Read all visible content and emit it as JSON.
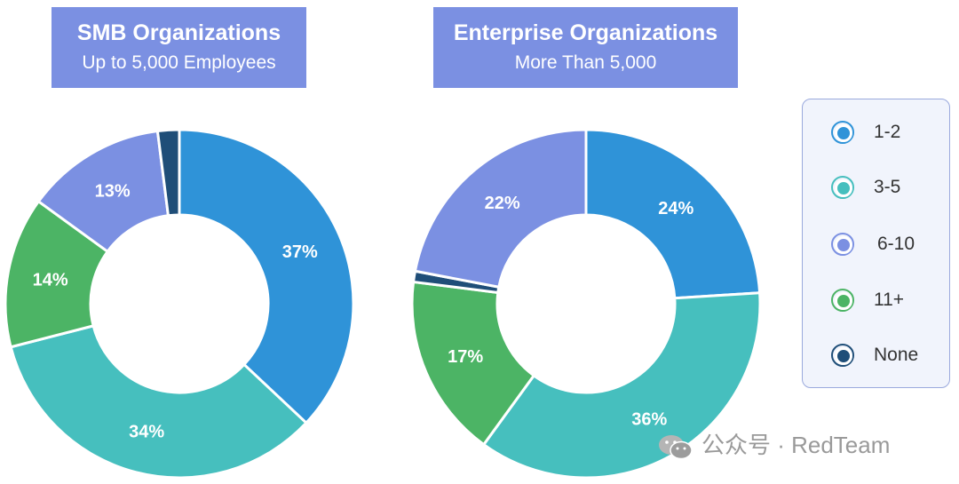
{
  "colors": {
    "1-2": "#2f93d8",
    "3-5": "#46bfbe",
    "6-10": "#7b90e2",
    "11+": "#4cb465",
    "None": "#1f4e78"
  },
  "chart_data": [
    {
      "type": "pie",
      "title": "SMB Organizations",
      "subtitle": "Up to 5,000 Employees",
      "categories": [
        "1-2",
        "3-5",
        "11+",
        "6-10",
        "None"
      ],
      "values": [
        37,
        34,
        14,
        13,
        2
      ],
      "labels": [
        "37%",
        "34%",
        "14%",
        "13%",
        ""
      ]
    },
    {
      "type": "pie",
      "title": "Enterprise Organizations",
      "subtitle": "More Than 5,000",
      "categories": [
        "1-2",
        "3-5",
        "11+",
        "None",
        "6-10"
      ],
      "values": [
        24,
        36,
        17,
        1,
        22
      ],
      "labels": [
        "24%",
        "36%",
        "17%",
        "",
        "22%"
      ]
    }
  ],
  "legend": [
    {
      "label": "1-2",
      "key": "1-2"
    },
    {
      "label": "3-5",
      "key": "3-5"
    },
    {
      "label": "6-10",
      "key": "6-10"
    },
    {
      "label": "11+",
      "key": "11+"
    },
    {
      "label": "None",
      "key": "None"
    }
  ],
  "watermark": "公众号 · RedTeam"
}
